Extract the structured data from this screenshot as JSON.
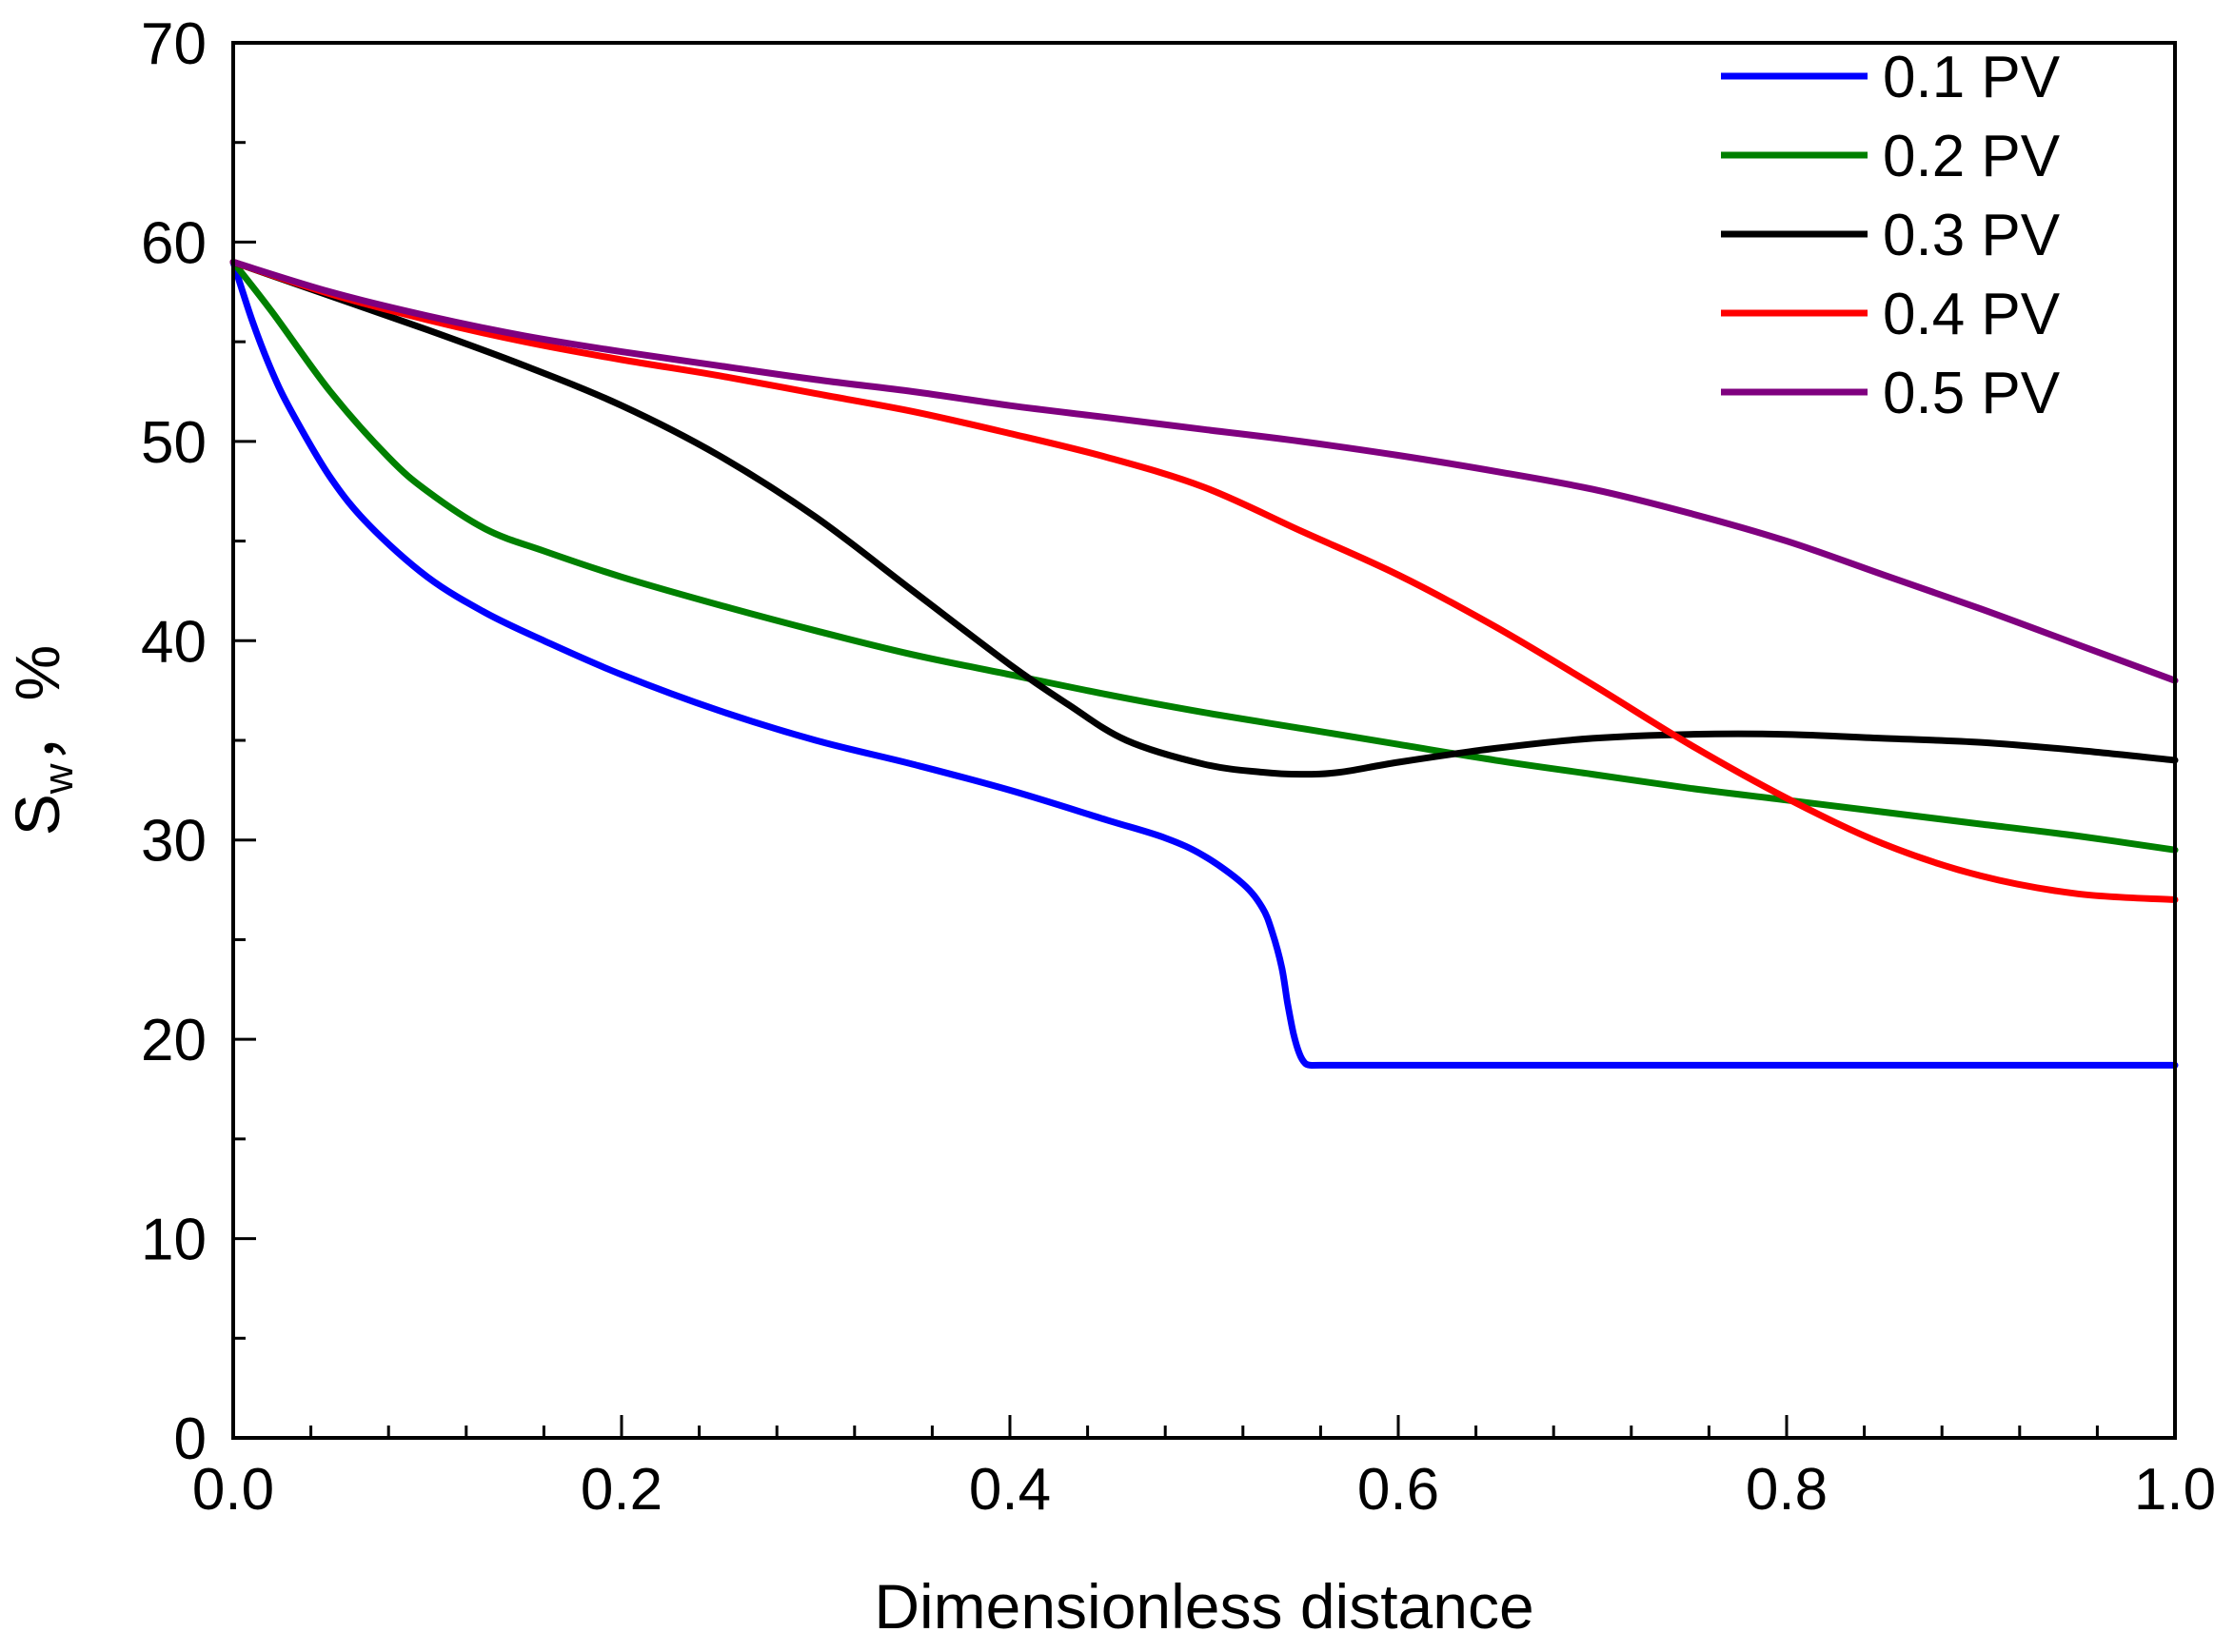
{
  "chart_data": {
    "type": "line",
    "title": "",
    "xlabel": "Dimensionless distance",
    "ylabel_main": "S",
    "ylabel_sub": "w",
    "ylabel_suffix": "，%",
    "xlim": [
      0,
      1
    ],
    "ylim": [
      0,
      70
    ],
    "xticks": [
      0.0,
      0.2,
      0.4,
      0.6,
      0.8,
      1.0
    ],
    "xtick_labels": [
      "0.0",
      "0.2",
      "0.4",
      "0.6",
      "0.8",
      "1.0"
    ],
    "yticks": [
      0,
      10,
      20,
      30,
      40,
      50,
      60,
      70
    ],
    "ytick_labels": [
      "0",
      "10",
      "20",
      "30",
      "40",
      "50",
      "60",
      "70"
    ],
    "grid": false,
    "legend_position": "top-right",
    "series": [
      {
        "name": "0.1 PV",
        "color": "#0000ff",
        "x": [
          0,
          0.01,
          0.02,
          0.03,
          0.05,
          0.07,
          0.1,
          0.13,
          0.16,
          0.2,
          0.25,
          0.3,
          0.35,
          0.4,
          0.45,
          0.48,
          0.5,
          0.52,
          0.53,
          0.535,
          0.54,
          0.543,
          0.546,
          0.549,
          0.552,
          0.555,
          0.56,
          0.6,
          0.7,
          0.8,
          0.9,
          1.0
        ],
        "y": [
          59,
          56,
          53.5,
          51.5,
          48.2,
          45.8,
          43.2,
          41.4,
          40,
          38.3,
          36.5,
          35,
          33.8,
          32.5,
          31,
          30.1,
          29.2,
          27.8,
          26.6,
          25.4,
          23.6,
          21.8,
          20.3,
          19.3,
          18.8,
          18.7,
          18.7,
          18.7,
          18.7,
          18.7,
          18.7,
          18.7
        ]
      },
      {
        "name": "0.2 PV",
        "color": "#008000",
        "x": [
          0,
          0.02,
          0.05,
          0.08,
          0.1,
          0.13,
          0.16,
          0.2,
          0.25,
          0.3,
          0.35,
          0.4,
          0.45,
          0.5,
          0.55,
          0.6,
          0.65,
          0.7,
          0.75,
          0.8,
          0.85,
          0.9,
          0.95,
          1.0
        ],
        "y": [
          59,
          56.5,
          52.5,
          49.2,
          47.5,
          45.6,
          44.5,
          43.2,
          41.8,
          40.5,
          39.3,
          38.3,
          37.3,
          36.4,
          35.6,
          34.8,
          34,
          33.3,
          32.6,
          32,
          31.4,
          30.8,
          30.2,
          29.5
        ]
      },
      {
        "name": "0.3 PV",
        "color": "#000000",
        "x": [
          0,
          0.05,
          0.1,
          0.15,
          0.2,
          0.25,
          0.3,
          0.35,
          0.4,
          0.43,
          0.46,
          0.5,
          0.53,
          0.55,
          0.57,
          0.6,
          0.65,
          0.7,
          0.75,
          0.8,
          0.85,
          0.9,
          0.95,
          1.0
        ],
        "y": [
          59,
          57.3,
          55.6,
          53.8,
          51.8,
          49.3,
          46.2,
          42.5,
          38.8,
          36.8,
          35,
          33.8,
          33.4,
          33.3,
          33.4,
          33.9,
          34.6,
          35.1,
          35.3,
          35.3,
          35.1,
          34.9,
          34.5,
          34
        ]
      },
      {
        "name": "0.4 PV",
        "color": "#ff0000",
        "x": [
          0,
          0.05,
          0.1,
          0.15,
          0.2,
          0.25,
          0.3,
          0.35,
          0.4,
          0.45,
          0.5,
          0.55,
          0.6,
          0.65,
          0.7,
          0.75,
          0.8,
          0.85,
          0.9,
          0.95,
          1.0
        ],
        "y": [
          59,
          57.4,
          56.1,
          55,
          54.1,
          53.3,
          52.4,
          51.5,
          50.4,
          49.2,
          47.7,
          45.5,
          43.3,
          40.7,
          37.8,
          34.8,
          32.1,
          29.8,
          28.2,
          27.3,
          27
        ]
      },
      {
        "name": "0.5 PV",
        "color": "#7f007f",
        "x": [
          0,
          0.05,
          0.1,
          0.15,
          0.2,
          0.25,
          0.3,
          0.35,
          0.4,
          0.45,
          0.5,
          0.55,
          0.6,
          0.65,
          0.7,
          0.75,
          0.8,
          0.85,
          0.9,
          0.95,
          1.0
        ],
        "y": [
          59,
          57.5,
          56.3,
          55.3,
          54.5,
          53.8,
          53.1,
          52.5,
          51.8,
          51.2,
          50.6,
          50,
          49.3,
          48.5,
          47.6,
          46.4,
          45,
          43.3,
          41.6,
          39.8,
          38
        ]
      }
    ]
  }
}
